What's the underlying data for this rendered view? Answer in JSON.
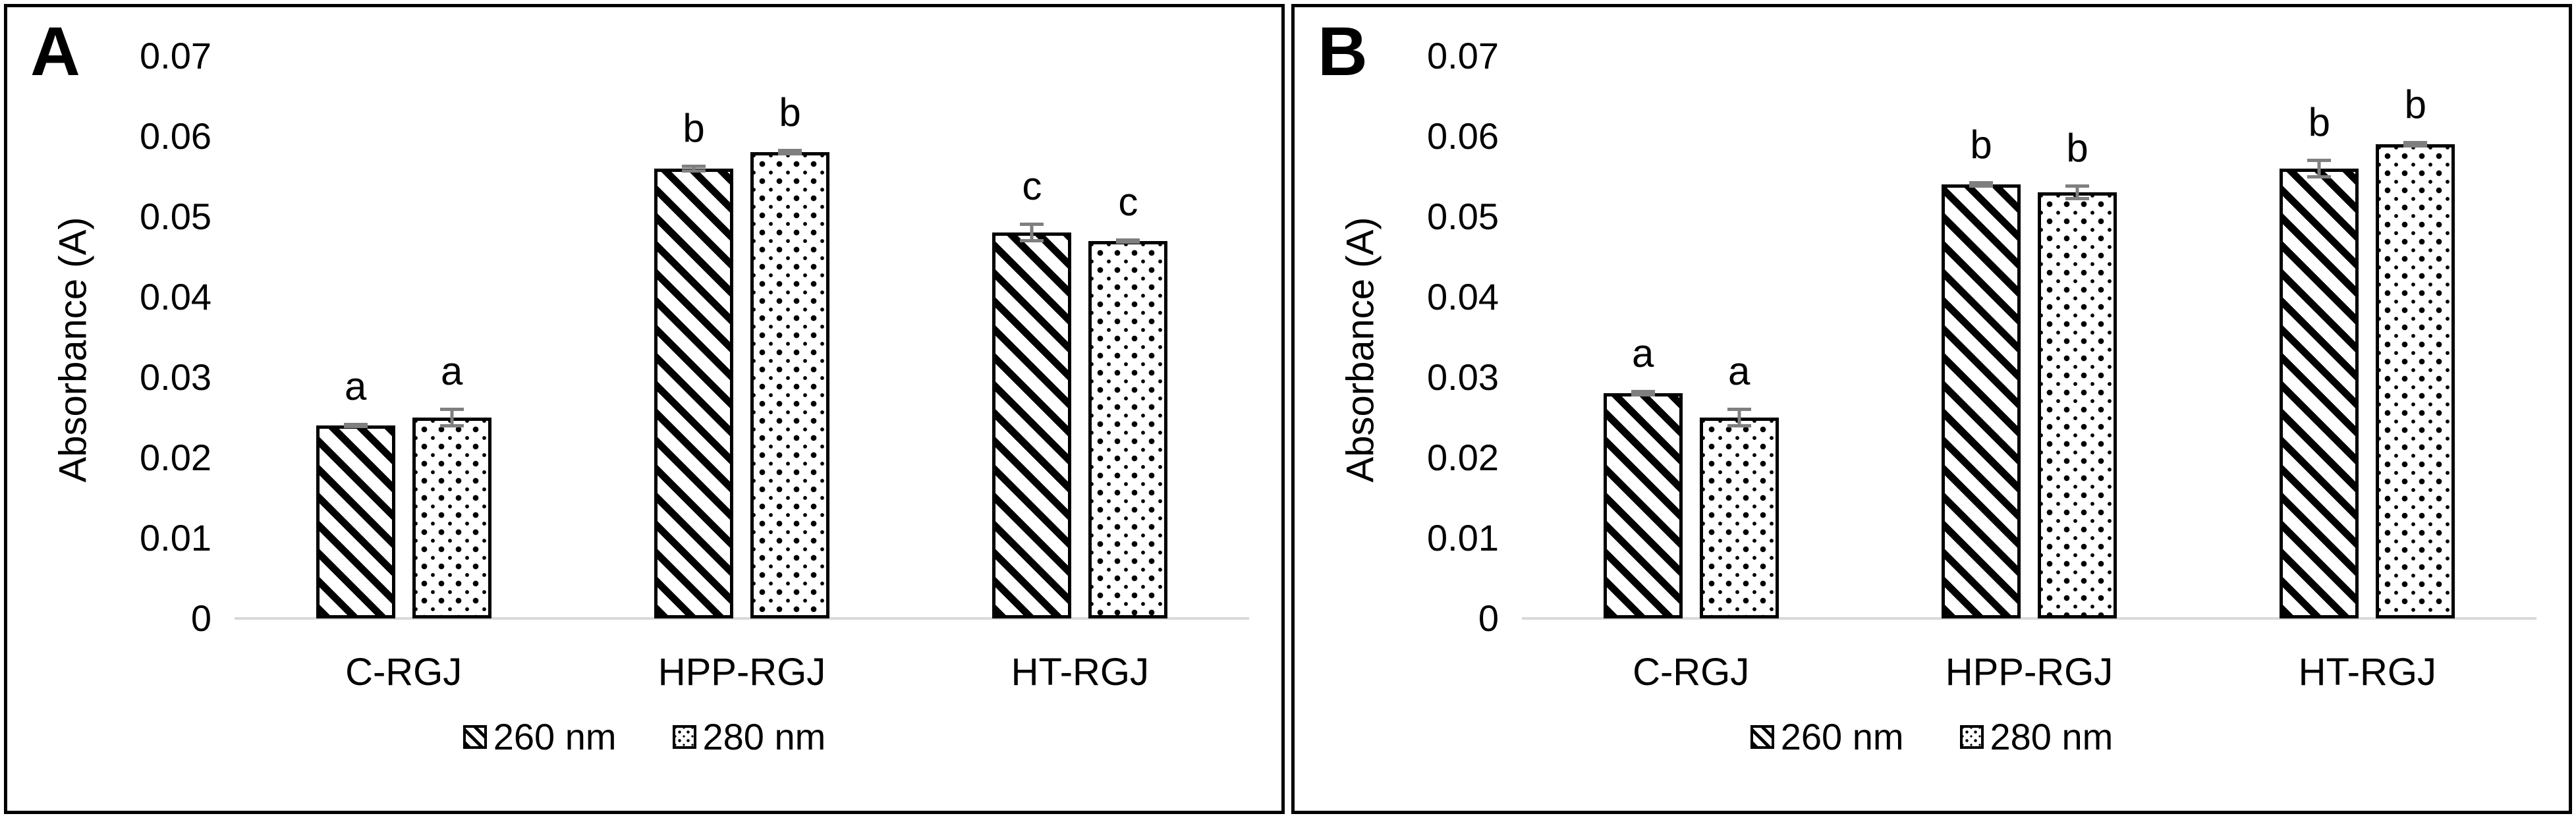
{
  "figure": {
    "background": "#ffffff",
    "text_color": "#000000",
    "axis_line_color": "#d9d9d9",
    "error_bar_color": "#7f7f7f",
    "bar_outline_color": "#000000"
  },
  "chart_data": [
    {
      "panel_label": "A",
      "type": "bar",
      "ylabel": "Absorbance (A)",
      "ylim": [
        0,
        0.07
      ],
      "ytick_values": [
        0,
        0.01,
        0.02,
        0.03,
        0.04,
        0.05,
        0.06,
        0.07
      ],
      "ytick_labels": [
        "0",
        "0.01",
        "0.02",
        "0.03",
        "0.04",
        "0.05",
        "0.06",
        "0.07"
      ],
      "grid": false,
      "legend_position": "bottom-center",
      "categories": [
        "C-RGJ",
        "HPP-RGJ",
        "HT-RGJ"
      ],
      "series": [
        {
          "name": "260 nm",
          "pattern": "diagonal-hatch",
          "values": [
            0.024,
            0.056,
            0.048
          ],
          "errors": [
            0.0003,
            0.0005,
            0.0012
          ],
          "sig_letters": [
            "a",
            "b",
            "c"
          ]
        },
        {
          "name": "280 nm",
          "pattern": "dots",
          "values": [
            0.025,
            0.058,
            0.047
          ],
          "errors": [
            0.0012,
            0.0004,
            0.0003
          ],
          "sig_letters": [
            "a",
            "b",
            "c"
          ]
        }
      ]
    },
    {
      "panel_label": "B",
      "type": "bar",
      "ylabel": "Absorbance (A)",
      "ylim": [
        0,
        0.07
      ],
      "ytick_values": [
        0,
        0.01,
        0.02,
        0.03,
        0.04,
        0.05,
        0.06,
        0.07
      ],
      "ytick_labels": [
        "0",
        "0.01",
        "0.02",
        "0.03",
        "0.04",
        "0.05",
        "0.06",
        "0.07"
      ],
      "grid": false,
      "legend_position": "bottom-center",
      "categories": [
        "C-RGJ",
        "HPP-RGJ",
        "HT-RGJ"
      ],
      "series": [
        {
          "name": "260 nm",
          "pattern": "diagonal-hatch",
          "values": [
            0.028,
            0.054,
            0.056
          ],
          "errors": [
            0.0004,
            0.0004,
            0.0012
          ],
          "sig_letters": [
            "a",
            "b",
            "b"
          ]
        },
        {
          "name": "280 nm",
          "pattern": "dots",
          "values": [
            0.025,
            0.053,
            0.059
          ],
          "errors": [
            0.0012,
            0.001,
            0.0004
          ],
          "sig_letters": [
            "a",
            "b",
            "b"
          ]
        }
      ]
    }
  ]
}
